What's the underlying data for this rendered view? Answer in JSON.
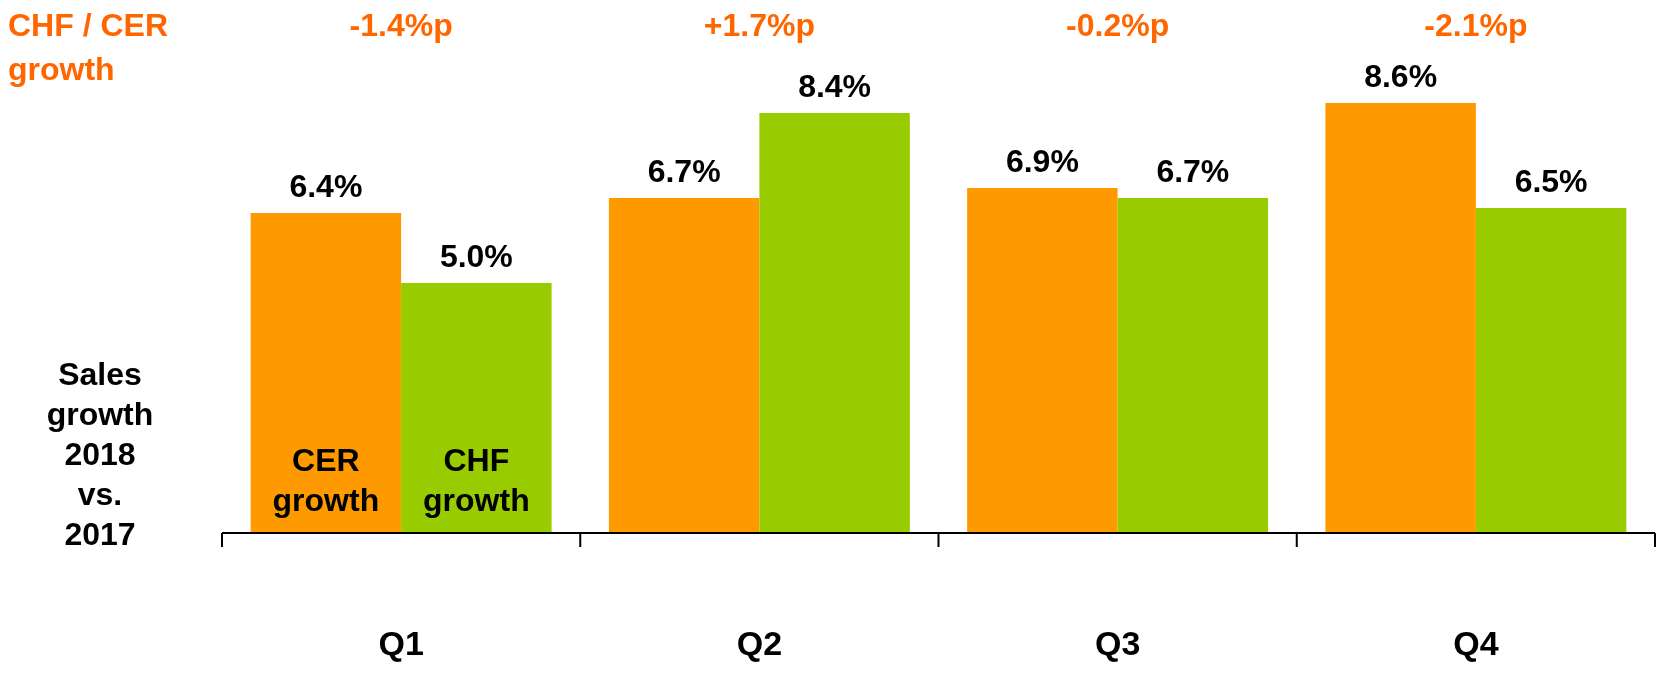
{
  "chart_data": {
    "type": "bar",
    "title": "CHF / CER growth",
    "ylabel": "Sales growth 2018 vs. 2017",
    "categories": [
      "Q1",
      "Q2",
      "Q3",
      "Q4"
    ],
    "series": [
      {
        "name": "CER growth",
        "color": "#ff9900",
        "values": [
          6.4,
          6.7,
          6.9,
          8.6
        ],
        "value_labels": [
          "6.4%",
          "6.7%",
          "6.9%",
          "8.6%"
        ]
      },
      {
        "name": "CHF growth",
        "color": "#99cc00",
        "values": [
          5.0,
          8.4,
          6.7,
          6.5
        ],
        "value_labels": [
          "5.0%",
          "8.4%",
          "6.7%",
          "6.5%"
        ]
      }
    ],
    "annotations": [
      "-1.4%p",
      "+1.7%p",
      "-0.2%p",
      "-2.1%p"
    ],
    "legend": false
  }
}
